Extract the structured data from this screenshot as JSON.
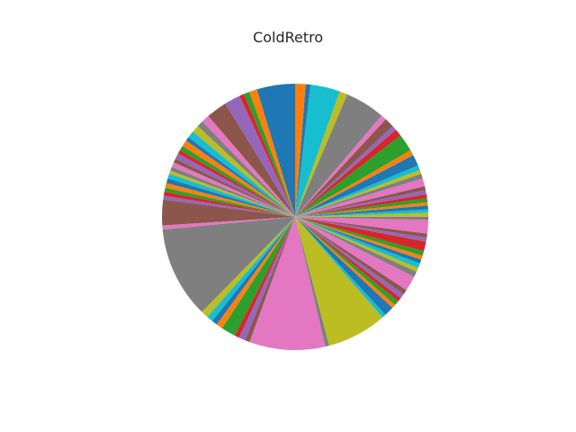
{
  "chart_data": {
    "type": "pie",
    "title": "ColdRetro",
    "start_angle_deg": 90,
    "direction": "counterclockwise",
    "palette": [
      "#1f77b4",
      "#ff7f0e",
      "#2ca02c",
      "#d62728",
      "#9467bd",
      "#8c564b",
      "#e377c2",
      "#7f7f7f",
      "#bcbd22",
      "#17becf"
    ],
    "values": [
      4.8,
      1.0,
      0.7,
      0.6,
      2.0,
      2.6,
      1.0,
      0.8,
      0.9,
      0.9,
      0.5,
      0.8,
      0.6,
      0.5,
      0.7,
      0.5,
      0.6,
      0.5,
      0.4,
      0.6,
      0.6,
      0.6,
      0.5,
      0.5,
      0.5,
      3.2,
      0.5,
      11.5,
      0.9,
      0.8,
      0.7,
      0.8,
      1.8,
      0.6,
      0.8,
      0.6,
      9.5,
      0.5,
      7.5,
      0.5,
      1.2,
      0.5,
      0.6,
      0.5,
      0.6,
      0.6,
      1.9,
      0.7,
      0.5,
      0.6,
      0.5,
      0.5,
      0.6,
      1.2,
      0.5,
      0.5,
      1.7,
      0.4,
      0.5,
      0.4,
      0.5,
      0.4,
      0.5,
      0.5,
      0.5,
      0.5,
      1.0,
      0.6,
      0.5,
      0.6,
      1.4,
      0.7,
      2.2,
      0.9,
      0.6,
      1.2,
      0.7,
      5.0,
      1.0,
      3.7,
      0.6,
      1.3
    ]
  }
}
